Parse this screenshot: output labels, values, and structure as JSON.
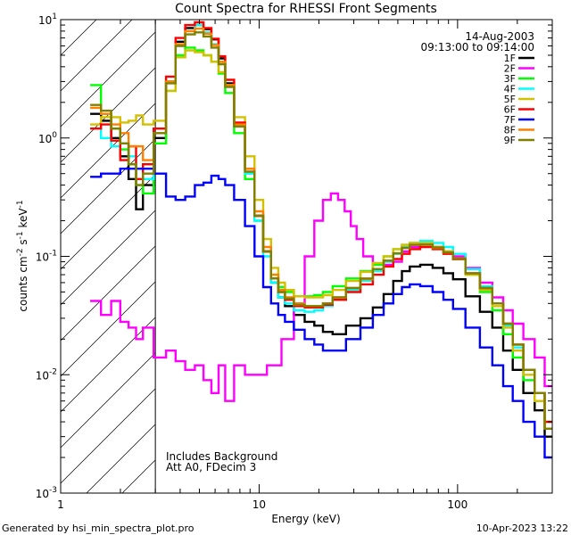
{
  "chart_data": {
    "type": "line",
    "title": "Count Spectra for RHESSI Front Segments",
    "xlabel": "Energy (keV)",
    "ylabel_parts": {
      "base": "counts cm",
      "exp1": "-2",
      "mid": " s",
      "exp2": "-1",
      "mid2": " keV",
      "exp3": "-1"
    },
    "x_scale": "log",
    "y_scale": "log",
    "xlim": [
      1,
      300
    ],
    "ylim": [
      0.001,
      10
    ],
    "x_major_ticks": [
      1,
      10,
      100
    ],
    "x_tick_labels": [
      "1",
      "10",
      "100"
    ],
    "y_major_ticks": [
      0.001,
      0.01,
      0.1,
      1,
      10
    ],
    "y_tick_labels": [
      {
        "base": "10",
        "exp": "-3"
      },
      {
        "base": "10",
        "exp": "-2"
      },
      {
        "base": "10",
        "exp": "-1"
      },
      {
        "base": "10",
        "exp": "0"
      },
      {
        "base": "10",
        "exp": "1"
      }
    ],
    "date": "14-Aug-2003",
    "time_range": "09:13:00 to 09:14:00",
    "hatched_region_keV": [
      1,
      3
    ],
    "annotations": [
      "Includes Background",
      "Att A0, FDecim 3"
    ],
    "footer_left": "Generated by hsi_min_spectra_plot.pro",
    "footer_right": "10-Apr-2023 13:22",
    "legend_position": "top-right",
    "series": [
      {
        "name": "1F",
        "color": "#000000",
        "x": [
          1.5,
          1.7,
          1.9,
          2.1,
          2.3,
          2.5,
          2.7,
          3.2,
          3.6,
          4,
          4.5,
          5,
          5.5,
          6,
          6.5,
          7,
          8,
          9,
          10,
          11,
          12,
          13,
          14,
          16,
          18,
          20,
          22,
          25,
          30,
          35,
          40,
          45,
          50,
          55,
          60,
          70,
          80,
          90,
          100,
          120,
          140,
          160,
          180,
          200,
          230,
          260,
          290
        ],
        "values": [
          1.6,
          1.4,
          1.0,
          0.7,
          0.45,
          0.25,
          0.4,
          1.0,
          3.0,
          6.5,
          8.5,
          9.0,
          8.3,
          6.8,
          4.7,
          2.9,
          1.3,
          0.55,
          0.22,
          0.11,
          0.06,
          0.045,
          0.038,
          0.032,
          0.028,
          0.026,
          0.023,
          0.022,
          0.026,
          0.03,
          0.037,
          0.048,
          0.062,
          0.075,
          0.082,
          0.085,
          0.08,
          0.072,
          0.064,
          0.046,
          0.034,
          0.025,
          0.016,
          0.011,
          0.007,
          0.005,
          0.003
        ]
      },
      {
        "name": "2F",
        "color": "#ff00ff",
        "x": [
          1.5,
          1.7,
          1.9,
          2.1,
          2.3,
          2.5,
          2.7,
          3.2,
          3.6,
          4,
          4.5,
          5,
          5.5,
          6,
          6.5,
          7,
          8,
          9,
          10,
          12,
          14,
          16,
          18,
          20,
          22,
          24,
          26,
          28,
          30,
          32,
          35,
          40,
          45,
          50,
          55,
          60,
          70,
          80,
          90,
          100,
          120,
          140,
          160,
          180,
          200,
          230,
          260,
          290
        ],
        "values": [
          0.042,
          0.032,
          0.042,
          0.028,
          0.025,
          0.02,
          0.025,
          0.014,
          0.016,
          0.013,
          0.011,
          0.012,
          0.009,
          0.007,
          0.012,
          0.006,
          0.012,
          0.01,
          0.01,
          0.012,
          0.02,
          0.04,
          0.1,
          0.2,
          0.3,
          0.34,
          0.3,
          0.24,
          0.18,
          0.14,
          0.1,
          0.085,
          0.085,
          0.09,
          0.11,
          0.12,
          0.13,
          0.12,
          0.11,
          0.1,
          0.08,
          0.06,
          0.045,
          0.035,
          0.027,
          0.02,
          0.014,
          0.008
        ]
      },
      {
        "name": "3F",
        "color": "#00ff00",
        "x": [
          1.5,
          1.7,
          1.9,
          2.1,
          2.3,
          2.5,
          2.7,
          3.2,
          3.6,
          4,
          4.5,
          5,
          5.5,
          6,
          6.5,
          7,
          8,
          9,
          10,
          11,
          12,
          13,
          14,
          16,
          18,
          20,
          22,
          25,
          30,
          35,
          40,
          45,
          50,
          55,
          60,
          70,
          80,
          90,
          100,
          120,
          140,
          160,
          180,
          200,
          230,
          260,
          290
        ],
        "values": [
          2.8,
          1.6,
          1.2,
          0.8,
          0.6,
          0.4,
          0.34,
          0.9,
          2.5,
          5.0,
          5.8,
          5.5,
          5.0,
          4.4,
          3.5,
          2.4,
          1.1,
          0.45,
          0.2,
          0.11,
          0.07,
          0.055,
          0.05,
          0.046,
          0.046,
          0.047,
          0.05,
          0.056,
          0.065,
          0.075,
          0.085,
          0.1,
          0.115,
          0.125,
          0.13,
          0.13,
          0.12,
          0.11,
          0.095,
          0.07,
          0.05,
          0.035,
          0.022,
          0.014,
          0.009,
          0.006,
          0.004
        ]
      },
      {
        "name": "4F",
        "color": "#00ffff",
        "x": [
          1.5,
          1.7,
          1.9,
          2.1,
          2.3,
          2.5,
          2.7,
          3.2,
          3.6,
          4,
          4.5,
          5,
          5.5,
          6,
          6.5,
          7,
          8,
          9,
          10,
          11,
          12,
          13,
          14,
          16,
          18,
          20,
          22,
          25,
          30,
          35,
          40,
          45,
          50,
          55,
          60,
          70,
          80,
          90,
          100,
          120,
          140,
          160,
          180,
          200,
          230,
          260,
          290
        ],
        "values": [
          1.2,
          1.0,
          0.85,
          0.9,
          0.7,
          0.55,
          0.45,
          1.1,
          3.0,
          6.0,
          8.0,
          9.0,
          7.8,
          6.2,
          4.4,
          2.8,
          1.25,
          0.5,
          0.2,
          0.1,
          0.06,
          0.045,
          0.04,
          0.035,
          0.034,
          0.035,
          0.038,
          0.043,
          0.052,
          0.062,
          0.075,
          0.09,
          0.105,
          0.12,
          0.13,
          0.135,
          0.13,
          0.12,
          0.105,
          0.078,
          0.056,
          0.04,
          0.026,
          0.017,
          0.011,
          0.007,
          0.004
        ]
      },
      {
        "name": "5F",
        "color": "#d4c000",
        "x": [
          1.5,
          1.7,
          1.9,
          2.1,
          2.3,
          2.5,
          2.7,
          3.2,
          3.6,
          4,
          4.5,
          5,
          5.5,
          6,
          6.5,
          7,
          8,
          9,
          10,
          11,
          12,
          13,
          14,
          16,
          18,
          20,
          22,
          25,
          30,
          35,
          40,
          45,
          50,
          55,
          60,
          70,
          80,
          90,
          100,
          120,
          140,
          160,
          180,
          200,
          230,
          260,
          290
        ],
        "values": [
          1.3,
          1.5,
          1.5,
          1.35,
          1.4,
          1.55,
          1.3,
          1.4,
          2.5,
          4.8,
          5.5,
          5.3,
          5.0,
          4.4,
          3.6,
          2.8,
          1.5,
          0.7,
          0.3,
          0.14,
          0.08,
          0.06,
          0.052,
          0.046,
          0.045,
          0.045,
          0.047,
          0.052,
          0.062,
          0.074,
          0.088,
          0.1,
          0.115,
          0.125,
          0.13,
          0.13,
          0.12,
          0.11,
          0.095,
          0.07,
          0.052,
          0.038,
          0.025,
          0.016,
          0.01,
          0.006,
          0.004
        ]
      },
      {
        "name": "6F",
        "color": "#ff0000",
        "x": [
          1.5,
          1.7,
          1.9,
          2.1,
          2.3,
          2.5,
          2.7,
          3.2,
          3.6,
          4,
          4.5,
          5,
          5.5,
          6,
          6.5,
          7,
          8,
          9,
          10,
          11,
          12,
          13,
          14,
          16,
          18,
          20,
          22,
          25,
          30,
          35,
          40,
          45,
          50,
          55,
          60,
          70,
          80,
          90,
          100,
          120,
          140,
          160,
          180,
          200,
          230,
          260,
          290
        ],
        "values": [
          1.2,
          1.3,
          0.95,
          0.65,
          0.85,
          0.45,
          0.6,
          1.2,
          3.3,
          7.0,
          9.0,
          9.5,
          8.5,
          6.9,
          4.9,
          3.1,
          1.35,
          0.55,
          0.22,
          0.11,
          0.065,
          0.05,
          0.043,
          0.038,
          0.037,
          0.037,
          0.039,
          0.043,
          0.05,
          0.058,
          0.07,
          0.082,
          0.095,
          0.105,
          0.115,
          0.12,
          0.115,
          0.105,
          0.095,
          0.072,
          0.054,
          0.04,
          0.027,
          0.018,
          0.011,
          0.007,
          0.004
        ]
      },
      {
        "name": "7F",
        "color": "#0000ff",
        "x": [
          1.5,
          1.7,
          1.9,
          2.1,
          2.3,
          2.5,
          2.7,
          3.2,
          3.6,
          4,
          4.5,
          5,
          5.5,
          6,
          6.5,
          7,
          8,
          9,
          10,
          11,
          12,
          13,
          14,
          16,
          18,
          20,
          22,
          25,
          30,
          35,
          40,
          45,
          50,
          55,
          60,
          70,
          80,
          90,
          100,
          120,
          140,
          160,
          180,
          200,
          230,
          260,
          290
        ],
        "values": [
          0.47,
          0.5,
          0.5,
          0.55,
          0.55,
          0.55,
          0.55,
          0.5,
          0.32,
          0.3,
          0.32,
          0.4,
          0.42,
          0.48,
          0.45,
          0.4,
          0.3,
          0.18,
          0.1,
          0.055,
          0.04,
          0.032,
          0.028,
          0.024,
          0.02,
          0.018,
          0.016,
          0.016,
          0.02,
          0.025,
          0.032,
          0.04,
          0.048,
          0.055,
          0.058,
          0.056,
          0.05,
          0.043,
          0.036,
          0.025,
          0.017,
          0.012,
          0.008,
          0.006,
          0.004,
          0.003,
          0.002
        ]
      },
      {
        "name": "8F",
        "color": "#ff8000",
        "x": [
          1.5,
          1.7,
          1.9,
          2.1,
          2.3,
          2.5,
          2.7,
          3.2,
          3.6,
          4,
          4.5,
          5,
          5.5,
          6,
          6.5,
          7,
          8,
          9,
          10,
          11,
          12,
          13,
          14,
          16,
          18,
          20,
          22,
          25,
          30,
          35,
          40,
          45,
          50,
          55,
          60,
          70,
          80,
          90,
          100,
          120,
          140,
          160,
          180,
          200,
          230,
          260,
          290
        ],
        "values": [
          1.8,
          1.6,
          1.3,
          1.1,
          0.85,
          0.85,
          0.65,
          1.1,
          3.0,
          6.2,
          8.0,
          8.4,
          7.6,
          6.1,
          4.4,
          2.8,
          1.3,
          0.55,
          0.24,
          0.12,
          0.07,
          0.052,
          0.045,
          0.04,
          0.038,
          0.038,
          0.04,
          0.045,
          0.054,
          0.064,
          0.078,
          0.092,
          0.106,
          0.118,
          0.125,
          0.125,
          0.118,
          0.108,
          0.096,
          0.072,
          0.054,
          0.04,
          0.027,
          0.018,
          0.011,
          0.007,
          0.0035
        ]
      },
      {
        "name": "9F",
        "color": "#808000",
        "x": [
          1.5,
          1.7,
          1.9,
          2.1,
          2.3,
          2.5,
          2.7,
          3.2,
          3.6,
          4,
          4.5,
          5,
          5.5,
          6,
          6.5,
          7,
          8,
          9,
          10,
          11,
          12,
          13,
          14,
          16,
          18,
          20,
          22,
          25,
          30,
          35,
          40,
          45,
          50,
          55,
          60,
          70,
          80,
          90,
          100,
          120,
          140,
          160,
          180,
          200,
          230,
          260,
          290
        ],
        "values": [
          1.9,
          1.7,
          1.2,
          0.9,
          0.6,
          0.4,
          0.5,
          1.1,
          2.9,
          6.0,
          7.5,
          7.8,
          7.2,
          5.8,
          4.2,
          2.7,
          1.25,
          0.52,
          0.22,
          0.11,
          0.065,
          0.05,
          0.044,
          0.039,
          0.038,
          0.038,
          0.04,
          0.045,
          0.054,
          0.065,
          0.078,
          0.092,
          0.106,
          0.118,
          0.125,
          0.126,
          0.119,
          0.108,
          0.096,
          0.072,
          0.054,
          0.04,
          0.027,
          0.018,
          0.011,
          0.007,
          0.0035
        ]
      }
    ]
  }
}
